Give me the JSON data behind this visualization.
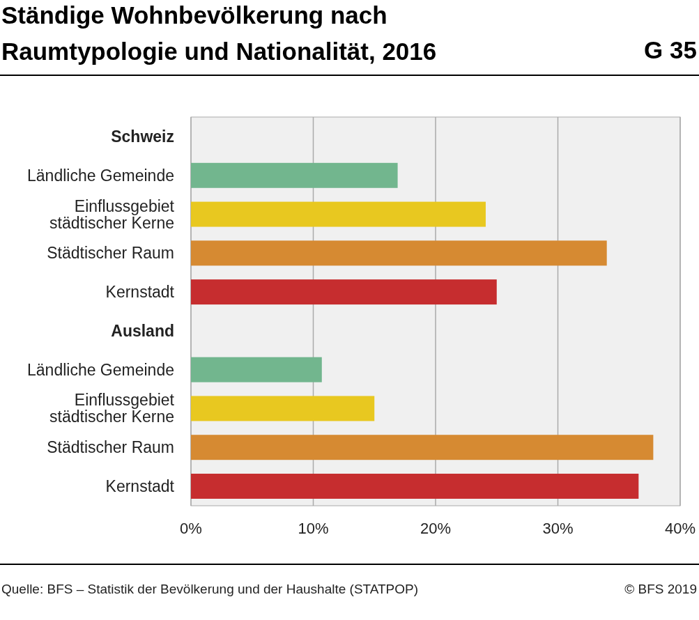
{
  "chart_data": {
    "type": "bar",
    "orientation": "horizontal",
    "title": "Ständige Wohnbevölkerung nach Raumtypologie und Nationalität, 2016",
    "categories": [
      "Schweiz",
      "Ländliche Gemeinde",
      "Einflussgebiet städtischer Kerne",
      "Städtischer Raum",
      "Kernstadt",
      "Ausland",
      "Ländliche Gemeinde",
      "Einflussgebiet städtischer Kerne",
      "Städtischer Raum",
      "Kernstadt"
    ],
    "values": [
      null,
      16.9,
      24.1,
      34.0,
      25.0,
      null,
      10.7,
      15.0,
      37.8,
      36.6
    ],
    "colors": [
      null,
      "#72b68e",
      "#e8c820",
      "#d68a32",
      "#c62d2f",
      null,
      "#72b68e",
      "#e8c820",
      "#d68a32",
      "#c62d2f"
    ],
    "xlim": [
      0,
      40
    ],
    "xticks": [
      {
        "value": 0,
        "label": "0%"
      },
      {
        "value": 10,
        "label": "10%"
      },
      {
        "value": 20,
        "label": "20%"
      },
      {
        "value": 30,
        "label": "30%"
      },
      {
        "value": 40,
        "label": "40%"
      }
    ],
    "grid": "x",
    "annotations": [
      "G 35",
      "Quelle: BFS – Statistik der Bevölkerung und der Haushalte (STATPOP)",
      "© BFS 2019"
    ]
  }
}
